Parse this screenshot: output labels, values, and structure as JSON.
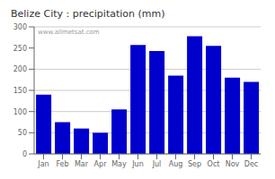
{
  "chart_data": {
    "type": "bar",
    "title": "Belize City : precipitation (mm)",
    "categories": [
      "Jan",
      "Feb",
      "Mar",
      "Apr",
      "May",
      "Jun",
      "Jul",
      "Aug",
      "Sep",
      "Oct",
      "Nov",
      "Dec"
    ],
    "values": [
      140,
      75,
      60,
      50,
      105,
      257,
      243,
      185,
      278,
      255,
      180,
      170
    ],
    "color": "#0000CC",
    "ylim": [
      0,
      300
    ],
    "yticks": [
      0,
      50,
      100,
      150,
      200,
      250,
      300
    ],
    "grid": true,
    "annotation": "www.allmetsat.com"
  }
}
